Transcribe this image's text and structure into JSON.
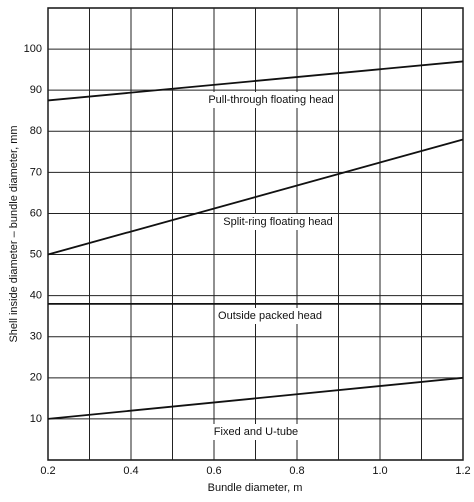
{
  "chart_data": {
    "type": "line",
    "x_label": "Bundle diameter, m",
    "y_label": "Shell inside diameter – bundle diameter, mm",
    "x": [
      0.2,
      1.2
    ],
    "series": [
      {
        "name": "Pull-through floating head",
        "color": "#111111",
        "values": [
          87.5,
          97
        ]
      },
      {
        "name": "Split-ring floating head",
        "color": "#111111",
        "values": [
          50,
          78
        ]
      },
      {
        "name": "Outside packed head",
        "color": "#111111",
        "values": [
          38,
          38
        ]
      },
      {
        "name": "Fixed and U-tube",
        "color": "#111111",
        "values": [
          10,
          20
        ]
      }
    ],
    "xlim": [
      0.2,
      1.2
    ],
    "xticks": [
      0.2,
      0.4,
      0.6,
      0.8,
      {
        "value": 1,
        "label": "1.0"
      },
      1.2
    ],
    "xgrid_minor": [
      0.3,
      0.5,
      0.7,
      0.9,
      1.1
    ],
    "ylim": [
      0,
      110
    ],
    "yticks": [
      10,
      20,
      30,
      40,
      50,
      60,
      70,
      80,
      90,
      100
    ],
    "grid": true
  }
}
